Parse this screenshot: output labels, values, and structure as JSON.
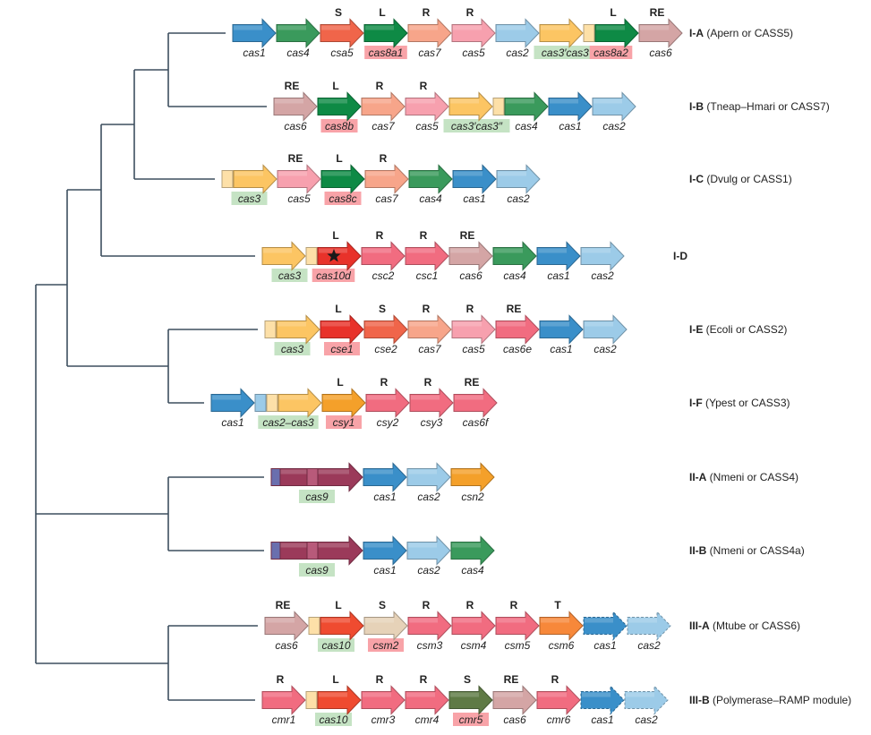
{
  "colors": {
    "tree": "#3d4f5f",
    "highlight_pink": "#f8a3a8",
    "highlight_green": "#c5e3c4"
  },
  "rows": [
    {
      "type": "I-A",
      "desc": " (Apern or CASS5)",
      "genes": [
        {
          "name": "cas1",
          "color": "#3a8fc9"
        },
        {
          "name": "cas4",
          "color": "#3a9a5c"
        },
        {
          "name": "csa5",
          "role": "S",
          "color": "#f0654a"
        },
        {
          "name": "cas8a1",
          "role": "L",
          "color": "#0e8a45",
          "hl": "pink"
        },
        {
          "name": "cas7",
          "role": "R",
          "color": "#f7a58a"
        },
        {
          "name": "cas5",
          "role": "R",
          "color": "#f7a0ae"
        },
        {
          "name": "cas2",
          "color": "#9ccbe8"
        },
        {
          "name": "cas3′cas3″",
          "color": "#fcc563",
          "hl": "green"
        },
        {
          "box": true,
          "color": "#fde0a8"
        },
        {
          "name": "cas8a2",
          "role": "L",
          "color": "#0e8a45",
          "hl": "pink"
        },
        {
          "name": "cas6",
          "role": "RE",
          "color": "#d4a5a5"
        }
      ]
    },
    {
      "type": "I-B",
      "desc": " (Tneap–Hmari or CASS7)",
      "genes": [
        {
          "name": "cas6",
          "role": "RE",
          "color": "#d4a5a5"
        },
        {
          "name": "cas8b",
          "role": "L",
          "color": "#0e8a45",
          "hl": "pink"
        },
        {
          "name": "cas7",
          "role": "R",
          "color": "#f7a58a"
        },
        {
          "name": "cas5",
          "role": "R",
          "color": "#f7a0ae"
        },
        {
          "name": "cas3′cas3″",
          "color": "#fcc563",
          "hl": "green"
        },
        {
          "box": true,
          "color": "#fde0a8"
        },
        {
          "name": "cas4",
          "color": "#3a9a5c"
        },
        {
          "name": "cas1",
          "color": "#3a8fc9"
        },
        {
          "name": "cas2",
          "color": "#9ccbe8"
        }
      ]
    },
    {
      "type": "I-C",
      "desc": " (Dvulg or CASS1)",
      "genes": [
        {
          "box": true,
          "color": "#fde0a8"
        },
        {
          "name": "cas3",
          "color": "#fcc563",
          "hl": "green"
        },
        {
          "name": "cas5",
          "role": "RE",
          "color": "#f7a0ae"
        },
        {
          "name": "cas8c",
          "role": "L",
          "color": "#0e8a45",
          "hl": "pink"
        },
        {
          "name": "cas7",
          "role": "R",
          "color": "#f7a58a"
        },
        {
          "name": "cas4",
          "color": "#3a9a5c"
        },
        {
          "name": "cas1",
          "color": "#3a8fc9"
        },
        {
          "name": "cas2",
          "color": "#9ccbe8"
        }
      ]
    },
    {
      "type": "I-D",
      "desc": "",
      "genes": [
        {
          "name": "cas3",
          "color": "#fcc563",
          "hl": "green"
        },
        {
          "box": true,
          "color": "#fde0a8"
        },
        {
          "name": "cas10d",
          "role": "L",
          "color": "#e8322a",
          "hl": "pink",
          "marker": "star"
        },
        {
          "name": "csc2",
          "role": "R",
          "color": "#f16c80"
        },
        {
          "name": "csc1",
          "role": "R",
          "color": "#f16c80"
        },
        {
          "name": "cas6",
          "role": "RE",
          "color": "#d4a5a5"
        },
        {
          "name": "cas4",
          "color": "#3a9a5c"
        },
        {
          "name": "cas1",
          "color": "#3a8fc9"
        },
        {
          "name": "cas2",
          "color": "#9ccbe8"
        }
      ]
    },
    {
      "type": "I-E",
      "desc": " (Ecoli or CASS2)",
      "genes": [
        {
          "box": true,
          "color": "#fde0a8"
        },
        {
          "name": "cas3",
          "color": "#fcc563",
          "hl": "green"
        },
        {
          "name": "cse1",
          "role": "L",
          "color": "#e8322a",
          "hl": "pink"
        },
        {
          "name": "cse2",
          "role": "S",
          "color": "#f0654a"
        },
        {
          "name": "cas7",
          "role": "R",
          "color": "#f7a58a"
        },
        {
          "name": "cas5",
          "role": "R",
          "color": "#f7a0ae"
        },
        {
          "name": "cas6e",
          "role": "RE",
          "color": "#f16c80"
        },
        {
          "name": "cas1",
          "color": "#3a8fc9"
        },
        {
          "name": "cas2",
          "color": "#9ccbe8"
        }
      ]
    },
    {
      "type": "I-F",
      "desc": " (Ypest or CASS3)",
      "genes": [
        {
          "name": "cas1",
          "color": "#3a8fc9"
        },
        {
          "box": true,
          "color": "#9ccbe8"
        },
        {
          "box": true,
          "color": "#fde0a8"
        },
        {
          "name": "cas2–cas3",
          "color": "#fcc563",
          "hl": "green"
        },
        {
          "name": "csy1",
          "role": "L",
          "color": "#f4a02a",
          "hl": "pink"
        },
        {
          "name": "csy2",
          "role": "R",
          "color": "#f16c80"
        },
        {
          "name": "csy3",
          "role": "R",
          "color": "#f16c80"
        },
        {
          "name": "cas6f",
          "role": "RE",
          "color": "#f16c80"
        }
      ]
    },
    {
      "type": "II-A",
      "desc": " (Nmeni or CASS4)",
      "genes": [
        {
          "name": "cas9",
          "color": "#9b3a5a",
          "hl": "green",
          "long": true
        },
        {
          "name": "cas1",
          "color": "#3a8fc9"
        },
        {
          "name": "cas2",
          "color": "#9ccbe8"
        },
        {
          "name": "csn2",
          "color": "#f4a02a"
        }
      ]
    },
    {
      "type": "II-B",
      "desc": " (Nmeni or CASS4a)",
      "genes": [
        {
          "name": "cas9",
          "color": "#9b3a5a",
          "hl": "green",
          "long": true
        },
        {
          "name": "cas1",
          "color": "#3a8fc9"
        },
        {
          "name": "cas2",
          "color": "#9ccbe8"
        },
        {
          "name": "cas4",
          "color": "#3a9a5c"
        }
      ]
    },
    {
      "type": "III-A",
      "desc": " (Mtube or CASS6)",
      "genes": [
        {
          "name": "cas6",
          "role": "RE",
          "color": "#d4a5a5"
        },
        {
          "box": true,
          "color": "#fde0a8"
        },
        {
          "name": "cas10",
          "role": "L",
          "color": "#ef4b30",
          "hl": "green"
        },
        {
          "name": "csm2",
          "role": "S",
          "color": "#e6d2b8",
          "hl": "pink"
        },
        {
          "name": "csm3",
          "role": "R",
          "color": "#f16c80"
        },
        {
          "name": "csm4",
          "role": "R",
          "color": "#f16c80"
        },
        {
          "name": "csm5",
          "role": "R",
          "color": "#f16c80"
        },
        {
          "name": "csm6",
          "role": "T",
          "color": "#f7883a"
        },
        {
          "name": "cas1",
          "color": "#3a8fc9",
          "dashed": true
        },
        {
          "name": "cas2",
          "color": "#9ccbe8",
          "dashed": true
        }
      ]
    },
    {
      "type": "III-B",
      "desc": " (Polymerase–RAMP module)",
      "genes": [
        {
          "name": "cmr1",
          "role": "R",
          "color": "#f16c80"
        },
        {
          "box": true,
          "color": "#fde0a8"
        },
        {
          "name": "cas10",
          "role": "L",
          "color": "#ef4b30",
          "hl": "green"
        },
        {
          "name": "cmr3",
          "role": "R",
          "color": "#f16c80"
        },
        {
          "name": "cmr4",
          "role": "R",
          "color": "#f16c80"
        },
        {
          "name": "cmr5",
          "role": "S",
          "color": "#5f7a45",
          "hl": "pink"
        },
        {
          "name": "cas6",
          "role": "RE",
          "color": "#d4a5a5"
        },
        {
          "name": "cmr6",
          "role": "R",
          "color": "#f16c80"
        },
        {
          "name": "cas1",
          "color": "#3a8fc9",
          "dashed": true
        },
        {
          "name": "cas2",
          "color": "#9ccbe8",
          "dashed": true
        }
      ]
    }
  ]
}
